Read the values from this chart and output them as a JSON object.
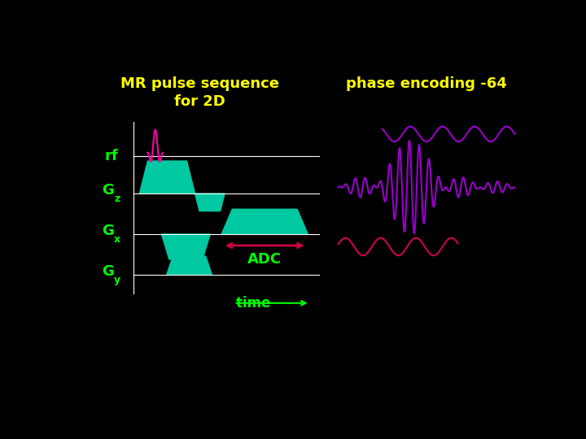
{
  "bg_color": "#000000",
  "title1": "MR pulse sequence",
  "title2": "for 2D",
  "title_color": "#ffff00",
  "phase_enc_text": "phase encoding -64",
  "phase_enc_color": "#ffff00",
  "label_color": "#00ff00",
  "teal_color": "#00c8a0",
  "magenta_color": "#cc0055",
  "rf_spike_color": "#ff00aa",
  "adc_arrow_color": "#cc0044",
  "adc_text_color": "#00ff00",
  "time_text_color": "#00ff00",
  "purple_color": "#9900cc",
  "white_color": "#ffffff"
}
